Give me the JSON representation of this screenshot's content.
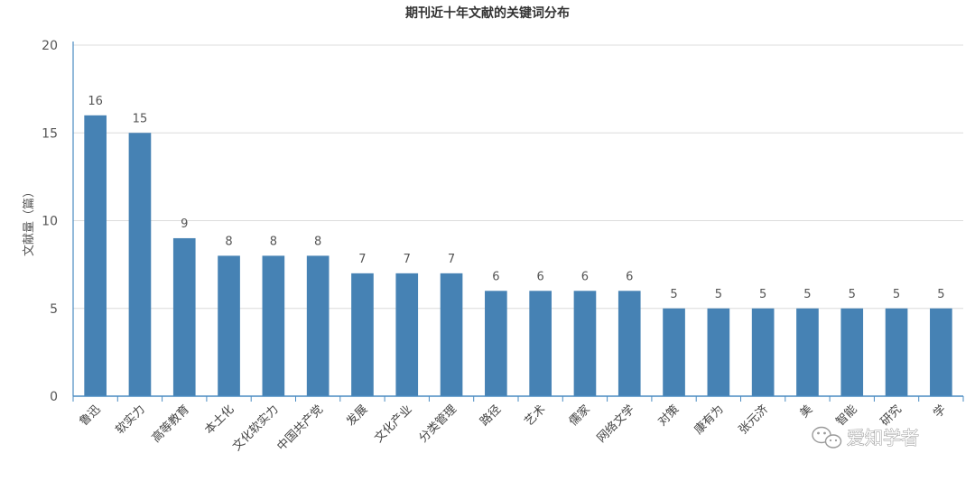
{
  "chart_data": {
    "type": "bar",
    "title": "期刊近十年文献的关键词分布",
    "xlabel": "",
    "ylabel": "文献量（篇）",
    "ylim": [
      0,
      20
    ],
    "yticks": [
      0,
      5,
      10,
      15,
      20
    ],
    "grid": true,
    "legend": "none",
    "bar_color": "#4682b4",
    "categories": [
      "鲁迅",
      "软实力",
      "高等教育",
      "本土化",
      "文化软实力",
      "中国共产党",
      "发展",
      "文化产业",
      "分类管理",
      "路径",
      "艺术",
      "儒家",
      "网络文学",
      "对策",
      "康有为",
      "张元济",
      "美",
      "智能",
      "研究",
      "学"
    ],
    "values": [
      16,
      15,
      9,
      8,
      8,
      8,
      7,
      7,
      7,
      6,
      6,
      6,
      6,
      5,
      5,
      5,
      5,
      5,
      5,
      5
    ]
  },
  "watermark": {
    "text": "爱知学者",
    "icon": "wechat-icon"
  }
}
